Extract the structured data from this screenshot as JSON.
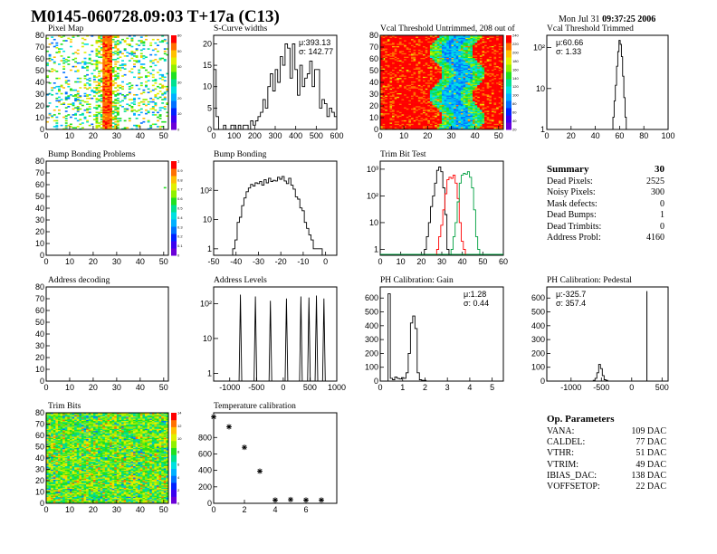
{
  "header": {
    "title": "M0145-060728.09:03 T+17a (C13)",
    "date_prefix": "Mon Jul 31",
    "date_time": "09:37:25",
    "date_year": "2006"
  },
  "panels": {
    "pixel_map": {
      "title": "Pixel Map"
    },
    "scurve": {
      "title": "S-Curve widths",
      "mu": "μ:393.13",
      "sigma": "σ: 142.77"
    },
    "vcal_untrimmed": {
      "title": "Vcal Threshold Untrimmed, 208 out of"
    },
    "vcal_trimmed": {
      "title": "Vcal Threshold Trimmed",
      "mu": "μ:60.66",
      "sigma": "σ: 1.33"
    },
    "bump_problems": {
      "title": "Bump Bonding Problems"
    },
    "bump_bonding": {
      "title": "Bump Bonding"
    },
    "trim_bit_test": {
      "title": "Trim Bit Test"
    },
    "address_decoding": {
      "title": "Address decoding"
    },
    "address_levels": {
      "title": "Address Levels"
    },
    "ph_gain": {
      "title": "PH Calibration: Gain",
      "mu": "μ:1.28",
      "sigma": "σ: 0.44"
    },
    "ph_pedestal": {
      "title": "PH Calibration: Pedestal",
      "mu": "μ:-325.7",
      "sigma": "σ: 357.4"
    },
    "trim_bits": {
      "title": "Trim Bits"
    },
    "temperature": {
      "title": "Temperature calibration"
    }
  },
  "summary": {
    "title": "Summary",
    "total": "30",
    "rows": [
      {
        "label": "Dead Pixels:",
        "value": "2525"
      },
      {
        "label": "Noisy Pixels:",
        "value": "300"
      },
      {
        "label": "Mask defects:",
        "value": "0"
      },
      {
        "label": "Dead Bumps:",
        "value": "1"
      },
      {
        "label": "Dead Trimbits:",
        "value": "0"
      },
      {
        "label": "Address Probl:",
        "value": "4160"
      }
    ]
  },
  "op_parameters": {
    "title": "Op. Parameters",
    "rows": [
      {
        "label": "VANA:",
        "value": "109 DAC"
      },
      {
        "label": "CALDEL:",
        "value": "77 DAC"
      },
      {
        "label": "VTHR:",
        "value": "51 DAC"
      },
      {
        "label": "VTRIM:",
        "value": "49 DAC"
      },
      {
        "label": "IBIAS_DAC:",
        "value": "138 DAC"
      },
      {
        "label": "VOFFSETOP:",
        "value": "22 DAC"
      }
    ]
  },
  "colors": {
    "palette": [
      "#6a00d8",
      "#3a00f0",
      "#0020ff",
      "#0070ff",
      "#00b0ff",
      "#00e0e0",
      "#00e090",
      "#20e020",
      "#90f000",
      "#e0f000",
      "#ffc000",
      "#ff7000",
      "#ff0000"
    ],
    "trim_curve_black": "#000000",
    "trim_curve_red": "#ff0000",
    "trim_curve_green": "#00a040"
  },
  "chart_data": [
    {
      "id": "pixel_map",
      "type": "heatmap",
      "title": "Pixel Map",
      "xlim": [
        0,
        52
      ],
      "ylim": [
        0,
        80
      ],
      "xticks": [
        "0",
        "10",
        "20",
        "30",
        "40",
        "50"
      ],
      "yticks": [
        "0",
        "10",
        "20",
        "30",
        "40",
        "50",
        "60",
        "70",
        "80"
      ],
      "zticks": [
        "0",
        "10",
        "20",
        "30",
        "40",
        "50",
        "60"
      ],
      "description_values": {
        "sparse_hits": true,
        "hot_columns": [
          25,
          27
        ]
      }
    },
    {
      "id": "scurve",
      "type": "bar",
      "title": "S-Curve widths",
      "xlim": [
        0,
        600
      ],
      "ylim": [
        0,
        22
      ],
      "xticks": [
        "0",
        "100",
        "200",
        "300",
        "400",
        "500",
        "600"
      ],
      "yticks": [
        "0",
        "5",
        "10",
        "15",
        "20"
      ],
      "bin_width": 12,
      "values": [
        14,
        3,
        0,
        0,
        1,
        0,
        0,
        1,
        1,
        0,
        1,
        0,
        1,
        1,
        0,
        2,
        1,
        2,
        3,
        4,
        7,
        5,
        10,
        13,
        9,
        14,
        11,
        17,
        15,
        20,
        19,
        12,
        20,
        14,
        8,
        15,
        10,
        12,
        13,
        16,
        10,
        14,
        14,
        5,
        7,
        6,
        3,
        5,
        4,
        3
      ],
      "mu": 393.13,
      "sigma": 142.77
    },
    {
      "id": "vcal_untrimmed",
      "type": "heatmap",
      "title": "Vcal Threshold Untrimmed, 208 out of",
      "xlim": [
        0,
        52
      ],
      "ylim": [
        0,
        80
      ],
      "xticks": [
        "0",
        "10",
        "20",
        "30",
        "40",
        "50"
      ],
      "yticks": [
        "0",
        "10",
        "20",
        "30",
        "40",
        "50",
        "60",
        "70",
        "80"
      ],
      "zticks": [
        "20",
        "40",
        "60",
        "80",
        "100",
        "120",
        "140",
        "160",
        "180",
        "200",
        "220",
        "240"
      ]
    },
    {
      "id": "vcal_trimmed",
      "type": "bar",
      "title": "Vcal Threshold Trimmed",
      "xlim": [
        0,
        100
      ],
      "ylim_log": [
        1,
        200
      ],
      "xticks": [
        "0",
        "20",
        "40",
        "60",
        "80",
        "100"
      ],
      "yticks": [
        "1",
        "10",
        "10²"
      ],
      "x": [
        54,
        55,
        56,
        57,
        58,
        59,
        60,
        61,
        62,
        63,
        64,
        65,
        66
      ],
      "values": [
        1,
        2,
        5,
        12,
        35,
        80,
        150,
        120,
        60,
        20,
        6,
        2,
        1
      ],
      "mu": 60.66,
      "sigma": 1.33
    },
    {
      "id": "bump_problems",
      "type": "heatmap",
      "title": "Bump Bonding Problems",
      "xlim": [
        0,
        52
      ],
      "ylim": [
        0,
        80
      ],
      "xticks": [
        "0",
        "10",
        "20",
        "30",
        "40",
        "50"
      ],
      "yticks": [
        "0",
        "10",
        "20",
        "30",
        "40",
        "50",
        "60",
        "70",
        "80"
      ],
      "zticks": [
        "0",
        "0.1",
        "0.2",
        "0.3",
        "0.4",
        "0.5",
        "0.6",
        "0.7",
        "0.8",
        "0.9",
        "1"
      ]
    },
    {
      "id": "bump_bonding",
      "type": "bar",
      "title": "Bump Bonding",
      "xlim": [
        -50,
        5
      ],
      "ylim_log": [
        0.6,
        1000
      ],
      "xticks": [
        "-50",
        "-40",
        "-30",
        "-20",
        "-10",
        "0"
      ],
      "yticks": [
        "1",
        "10",
        "10²"
      ],
      "x": [
        -41,
        -40,
        -39,
        -38,
        -37,
        -36,
        -35,
        -34,
        -33,
        -32,
        -31,
        -30,
        -29,
        -28,
        -27,
        -26,
        -25,
        -24,
        -23,
        -22,
        -21,
        -20,
        -19,
        -18,
        -17,
        -16,
        -15,
        -14,
        -13,
        -12,
        -11,
        -10,
        -9,
        -8,
        -7,
        -6,
        -5,
        -4,
        -3,
        -2
      ],
      "values": [
        1,
        2,
        8,
        12,
        30,
        55,
        90,
        120,
        160,
        140,
        180,
        170,
        200,
        150,
        230,
        180,
        260,
        200,
        220,
        210,
        280,
        240,
        300,
        210,
        170,
        260,
        150,
        110,
        60,
        50,
        25,
        20,
        8,
        5,
        3,
        2,
        1,
        1,
        1,
        1
      ]
    },
    {
      "id": "trim_bit_test",
      "type": "line",
      "title": "Trim Bit Test",
      "xlim": [
        0,
        60
      ],
      "ylim_log": [
        0.6,
        2000
      ],
      "xticks": [
        "0",
        "10",
        "20",
        "30",
        "40",
        "50",
        "60"
      ],
      "yticks": [
        "1",
        "10",
        "10²",
        "10³"
      ],
      "series": [
        {
          "name": "black",
          "x": [
            22,
            23,
            24,
            25,
            26,
            27,
            28,
            29,
            30,
            31,
            32,
            33
          ],
          "values": [
            1,
            3,
            10,
            40,
            100,
            300,
            900,
            1200,
            800,
            200,
            20,
            1
          ]
        },
        {
          "name": "red",
          "x": [
            28,
            29,
            30,
            31,
            32,
            33,
            34,
            35,
            36,
            37,
            38,
            39,
            40,
            41
          ],
          "values": [
            1,
            3,
            8,
            30,
            120,
            400,
            500,
            450,
            600,
            300,
            80,
            10,
            2,
            1
          ]
        },
        {
          "name": "green",
          "x": [
            35,
            36,
            37,
            38,
            39,
            40,
            41,
            42,
            43,
            44,
            45,
            46,
            47,
            48
          ],
          "values": [
            1,
            3,
            10,
            60,
            300,
            600,
            700,
            650,
            800,
            500,
            200,
            30,
            3,
            1
          ]
        }
      ]
    },
    {
      "id": "address_decoding",
      "type": "heatmap",
      "title": "Address decoding",
      "xlim": [
        0,
        52
      ],
      "ylim": [
        0,
        80
      ],
      "xticks": [
        "0",
        "10",
        "20",
        "30",
        "40",
        "50"
      ],
      "yticks": [
        "0",
        "10",
        "20",
        "30",
        "40",
        "50",
        "60",
        "70",
        "80"
      ]
    },
    {
      "id": "address_levels",
      "type": "line",
      "title": "Address Levels",
      "xlim": [
        -1300,
        1000
      ],
      "ylim_log": [
        0.6,
        300
      ],
      "xticks": [
        "-1000",
        "-500",
        "0",
        "500",
        "1000"
      ],
      "yticks": [
        "1",
        "10",
        "10²"
      ],
      "peaks_x": [
        -800,
        -520,
        -240,
        60,
        330,
        480,
        620,
        760
      ],
      "peaks_y": [
        180,
        160,
        120,
        140,
        160,
        150,
        170,
        140
      ]
    },
    {
      "id": "ph_gain",
      "type": "bar",
      "title": "PH Calibration: Gain",
      "xlim": [
        0,
        5.5
      ],
      "ylim": [
        0,
        680
      ],
      "xticks": [
        "0",
        "1",
        "2",
        "3",
        "4",
        "5"
      ],
      "yticks": [
        "0",
        "100",
        "200",
        "300",
        "400",
        "500",
        "600"
      ],
      "x": [
        0.4,
        0.5,
        0.6,
        0.7,
        0.8,
        0.9,
        1.0,
        1.1,
        1.2,
        1.3,
        1.4,
        1.5,
        1.6,
        1.7,
        1.8,
        1.9,
        2.0
      ],
      "values": [
        630,
        20,
        10,
        30,
        20,
        15,
        25,
        20,
        60,
        200,
        420,
        470,
        380,
        60,
        10,
        5,
        5
      ],
      "mu": 1.28,
      "sigma": 0.44
    },
    {
      "id": "ph_pedestal",
      "type": "bar",
      "title": "PH Calibration: Pedestal",
      "xlim": [
        -1400,
        600
      ],
      "ylim": [
        0,
        680
      ],
      "xticks": [
        "-1000",
        "-500",
        "0",
        "500"
      ],
      "yticks": [
        "0",
        "100",
        "200",
        "300",
        "400",
        "500",
        "600"
      ],
      "x": [
        -620,
        -590,
        -560,
        -530,
        -500,
        -470,
        -440,
        -410,
        250
      ],
      "values": [
        5,
        20,
        60,
        120,
        90,
        40,
        10,
        5,
        650
      ],
      "mu": -325.7,
      "sigma": 357.4
    },
    {
      "id": "trim_bits",
      "type": "heatmap",
      "title": "Trim Bits",
      "xlim": [
        0,
        52
      ],
      "ylim": [
        0,
        80
      ],
      "xticks": [
        "0",
        "10",
        "20",
        "30",
        "40",
        "50"
      ],
      "yticks": [
        "0",
        "10",
        "20",
        "30",
        "40",
        "50",
        "60",
        "70",
        "80"
      ],
      "zticks": [
        "0",
        "2",
        "4",
        "6",
        "8",
        "10",
        "12",
        "14"
      ]
    },
    {
      "id": "temperature",
      "type": "scatter",
      "title": "Temperature calibration",
      "xlim": [
        0,
        8
      ],
      "ylim": [
        0,
        1100
      ],
      "xticks": [
        "0",
        "2",
        "4",
        "6"
      ],
      "yticks": [
        "0",
        "200",
        "400",
        "600",
        "800"
      ],
      "x": [
        0,
        1,
        2,
        3,
        4,
        5,
        6,
        7
      ],
      "values": [
        1050,
        930,
        680,
        390,
        40,
        45,
        40,
        40
      ]
    }
  ]
}
